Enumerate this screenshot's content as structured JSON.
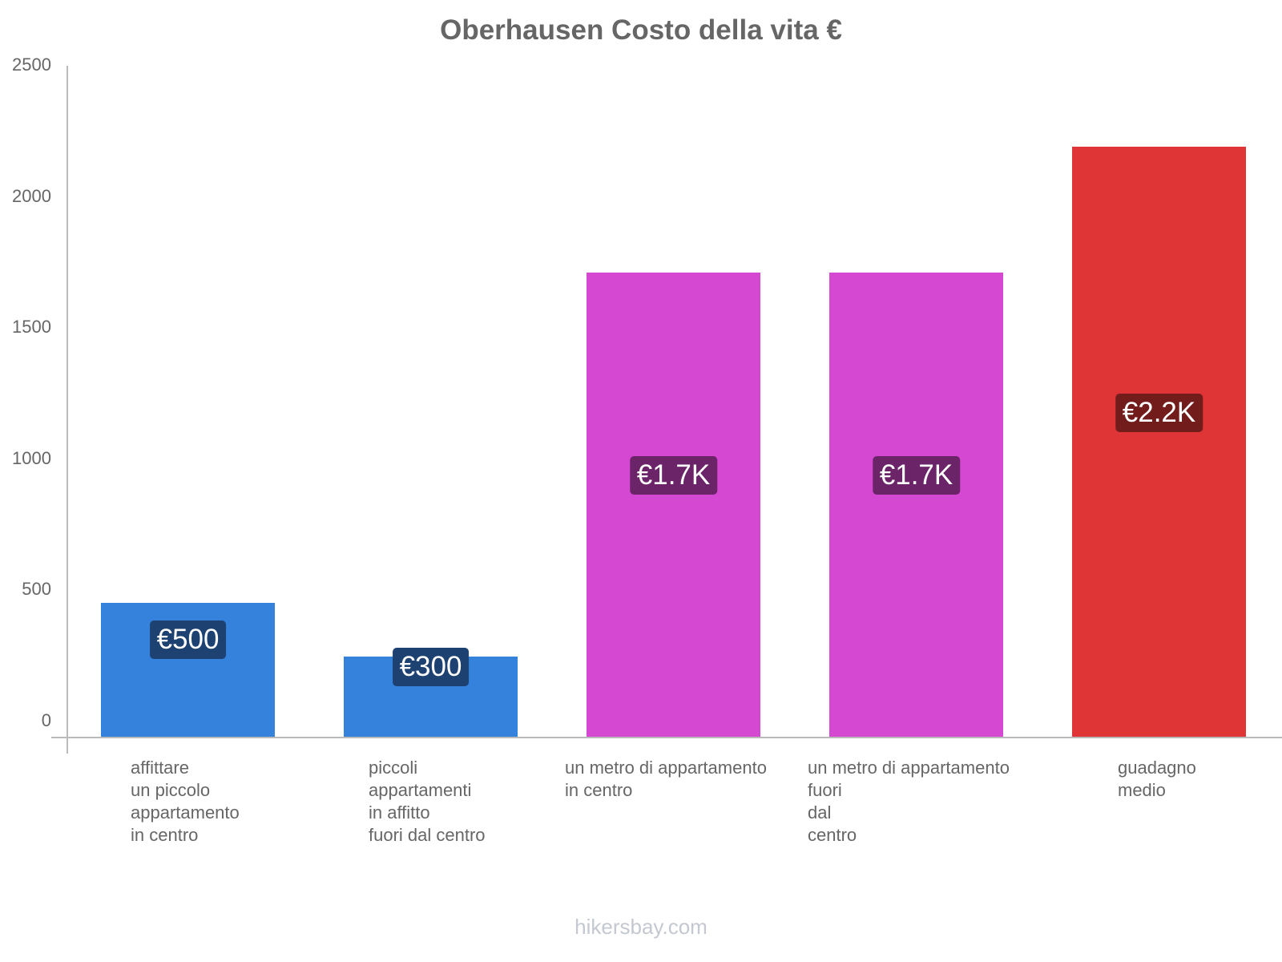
{
  "chart_data": {
    "type": "bar",
    "title": "Oberhausen Costo della vita €",
    "xlabel": "",
    "ylabel": "",
    "ylim": [
      0,
      2500
    ],
    "yticks": [
      0,
      500,
      1000,
      1500,
      2000,
      2500
    ],
    "grid": false,
    "legend": null,
    "categories": [
      "affittare un piccolo appartamento in centro",
      "piccoli appartamenti in affitto fuori dal centro",
      "un metro di appartamento in centro",
      "un metro di appartamento fuori dal centro",
      "guadagno medio"
    ],
    "values": [
      500,
      300,
      1730,
      1730,
      2200
    ],
    "data_labels": [
      "€500",
      "€300",
      "€1.7K",
      "€1.7K",
      "€2.2K"
    ],
    "colors": [
      "#3582dc",
      "#3582dc",
      "#d548d1",
      "#d548d1",
      "#e03536"
    ]
  },
  "title": "Oberhausen Costo della vita €",
  "y_axis": {
    "ticks": [
      "2500",
      "2000",
      "1500",
      "1000",
      "500",
      "0"
    ]
  },
  "bars": [
    {
      "label": "affittare\nun piccolo\nappartamento\nin centro",
      "value_label": "€500",
      "value": 500,
      "color": "#3582dc",
      "pill_color": "#1d4272"
    },
    {
      "label": "piccoli\nappartamenti\nin affitto\nfuori dal centro",
      "value_label": "€300",
      "value": 300,
      "color": "#3582dc",
      "pill_color": "#1d4272"
    },
    {
      "label": "un metro di appartamento\nin centro",
      "value_label": "€1.7K",
      "value": 1730,
      "color": "#d548d1",
      "pill_color": "#6b2468"
    },
    {
      "label": "un metro di appartamento\nfuori\ndal\ncentro",
      "value_label": "€1.7K",
      "value": 1730,
      "color": "#d548d1",
      "pill_color": "#6b2468"
    },
    {
      "label": "guadagno\nmedio",
      "value_label": "€2.2K",
      "value": 2200,
      "color": "#e03536",
      "pill_color": "#721c1c"
    }
  ],
  "footer": {
    "watermark": "hikersbay.com"
  }
}
